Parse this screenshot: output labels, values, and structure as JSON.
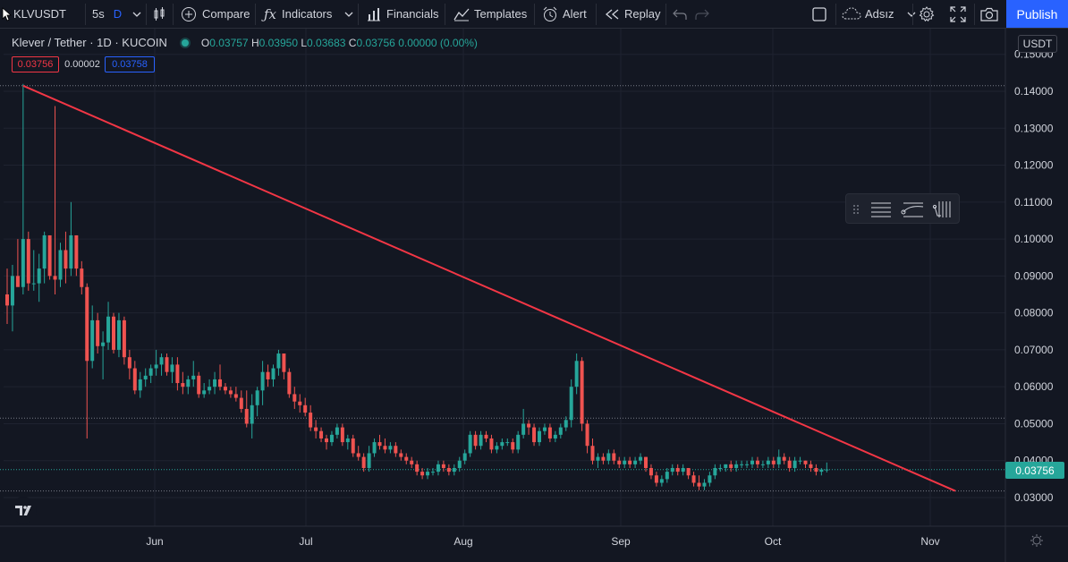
{
  "toolbar": {
    "symbol": "KLVUSDT",
    "interval_a": "5s",
    "interval_b": "D",
    "compare": "Compare",
    "indicators": "Indicators",
    "financials": "Financials",
    "templates": "Templates",
    "alert": "Alert",
    "replay": "Replay",
    "layout_name": "Adsız",
    "publish": "Publish"
  },
  "legend": {
    "title": "Klever / Tether · 1D · KUCOIN",
    "o_key": "O",
    "o_val": "0.03757",
    "h_key": "H",
    "h_val": "0.03950",
    "l_key": "L",
    "l_val": "0.03683",
    "c_key": "C",
    "c_val": "0.03756",
    "change": "0.00000 (0.00%)",
    "bid": "0.03756",
    "spread": "0.00002",
    "ask": "0.03758"
  },
  "colors": {
    "up": "#26a69a",
    "down": "#ef5350",
    "trendline": "#f23645",
    "accent": "#2962ff"
  },
  "price_axis": {
    "currency": "USDT",
    "labels": [
      "0.15000",
      "0.14000",
      "0.13000",
      "0.12000",
      "0.11000",
      "0.10000",
      "0.09000",
      "0.08000",
      "0.07000",
      "0.06000",
      "0.05000",
      "0.04000",
      "0.03000"
    ],
    "last_price": "0.03756"
  },
  "time_axis": {
    "labels": [
      "Jun",
      "Jul",
      "Aug",
      "Sep",
      "Oct",
      "Nov"
    ]
  },
  "chart_data": {
    "type": "candlestick",
    "symbol": "KLVUSDT",
    "interval": "1D",
    "exchange": "KUCOIN",
    "ylim": [
      0.029,
      0.152
    ],
    "candles": [
      {
        "o": 0.085,
        "h": 0.092,
        "l": 0.077,
        "c": 0.082
      },
      {
        "o": 0.082,
        "h": 0.093,
        "l": 0.075,
        "c": 0.09
      },
      {
        "o": 0.09,
        "h": 0.1,
        "l": 0.088,
        "c": 0.087
      },
      {
        "o": 0.087,
        "h": 0.142,
        "l": 0.085,
        "c": 0.1
      },
      {
        "o": 0.1,
        "h": 0.102,
        "l": 0.086,
        "c": 0.088
      },
      {
        "o": 0.088,
        "h": 0.097,
        "l": 0.086,
        "c": 0.088
      },
      {
        "o": 0.088,
        "h": 0.096,
        "l": 0.083,
        "c": 0.092
      },
      {
        "o": 0.092,
        "h": 0.102,
        "l": 0.088,
        "c": 0.101
      },
      {
        "o": 0.101,
        "h": 0.101,
        "l": 0.089,
        "c": 0.09
      },
      {
        "o": 0.09,
        "h": 0.136,
        "l": 0.085,
        "c": 0.089
      },
      {
        "o": 0.089,
        "h": 0.099,
        "l": 0.087,
        "c": 0.097
      },
      {
        "o": 0.097,
        "h": 0.102,
        "l": 0.088,
        "c": 0.092
      },
      {
        "o": 0.092,
        "h": 0.11,
        "l": 0.09,
        "c": 0.101
      },
      {
        "o": 0.101,
        "h": 0.101,
        "l": 0.09,
        "c": 0.092
      },
      {
        "o": 0.092,
        "h": 0.094,
        "l": 0.085,
        "c": 0.087
      },
      {
        "o": 0.087,
        "h": 0.088,
        "l": 0.046,
        "c": 0.067
      },
      {
        "o": 0.067,
        "h": 0.082,
        "l": 0.065,
        "c": 0.078
      },
      {
        "o": 0.078,
        "h": 0.08,
        "l": 0.069,
        "c": 0.071
      },
      {
        "o": 0.071,
        "h": 0.075,
        "l": 0.062,
        "c": 0.072
      },
      {
        "o": 0.072,
        "h": 0.083,
        "l": 0.07,
        "c": 0.079
      },
      {
        "o": 0.079,
        "h": 0.08,
        "l": 0.069,
        "c": 0.07
      },
      {
        "o": 0.07,
        "h": 0.08,
        "l": 0.068,
        "c": 0.078
      },
      {
        "o": 0.078,
        "h": 0.079,
        "l": 0.066,
        "c": 0.068
      },
      {
        "o": 0.068,
        "h": 0.07,
        "l": 0.062,
        "c": 0.065
      },
      {
        "o": 0.065,
        "h": 0.067,
        "l": 0.058,
        "c": 0.059
      },
      {
        "o": 0.059,
        "h": 0.064,
        "l": 0.057,
        "c": 0.062
      },
      {
        "o": 0.062,
        "h": 0.065,
        "l": 0.06,
        "c": 0.063
      },
      {
        "o": 0.063,
        "h": 0.066,
        "l": 0.061,
        "c": 0.065
      },
      {
        "o": 0.065,
        "h": 0.07,
        "l": 0.063,
        "c": 0.066
      },
      {
        "o": 0.066,
        "h": 0.069,
        "l": 0.063,
        "c": 0.068
      },
      {
        "o": 0.068,
        "h": 0.069,
        "l": 0.063,
        "c": 0.064
      },
      {
        "o": 0.064,
        "h": 0.068,
        "l": 0.061,
        "c": 0.066
      },
      {
        "o": 0.066,
        "h": 0.068,
        "l": 0.059,
        "c": 0.061
      },
      {
        "o": 0.061,
        "h": 0.064,
        "l": 0.058,
        "c": 0.06
      },
      {
        "o": 0.06,
        "h": 0.063,
        "l": 0.058,
        "c": 0.062
      },
      {
        "o": 0.062,
        "h": 0.067,
        "l": 0.06,
        "c": 0.063
      },
      {
        "o": 0.063,
        "h": 0.064,
        "l": 0.057,
        "c": 0.058
      },
      {
        "o": 0.058,
        "h": 0.061,
        "l": 0.057,
        "c": 0.059
      },
      {
        "o": 0.059,
        "h": 0.062,
        "l": 0.058,
        "c": 0.06
      },
      {
        "o": 0.06,
        "h": 0.064,
        "l": 0.058,
        "c": 0.062
      },
      {
        "o": 0.062,
        "h": 0.066,
        "l": 0.059,
        "c": 0.06
      },
      {
        "o": 0.06,
        "h": 0.061,
        "l": 0.058,
        "c": 0.059
      },
      {
        "o": 0.059,
        "h": 0.06,
        "l": 0.057,
        "c": 0.058
      },
      {
        "o": 0.058,
        "h": 0.06,
        "l": 0.056,
        "c": 0.057
      },
      {
        "o": 0.057,
        "h": 0.059,
        "l": 0.053,
        "c": 0.054
      },
      {
        "o": 0.054,
        "h": 0.059,
        "l": 0.049,
        "c": 0.05
      },
      {
        "o": 0.05,
        "h": 0.058,
        "l": 0.046,
        "c": 0.055
      },
      {
        "o": 0.055,
        "h": 0.06,
        "l": 0.052,
        "c": 0.059
      },
      {
        "o": 0.059,
        "h": 0.067,
        "l": 0.055,
        "c": 0.064
      },
      {
        "o": 0.064,
        "h": 0.066,
        "l": 0.06,
        "c": 0.062
      },
      {
        "o": 0.062,
        "h": 0.066,
        "l": 0.06,
        "c": 0.065
      },
      {
        "o": 0.065,
        "h": 0.07,
        "l": 0.063,
        "c": 0.069
      },
      {
        "o": 0.069,
        "h": 0.069,
        "l": 0.062,
        "c": 0.064
      },
      {
        "o": 0.064,
        "h": 0.065,
        "l": 0.057,
        "c": 0.058
      },
      {
        "o": 0.058,
        "h": 0.06,
        "l": 0.054,
        "c": 0.056
      },
      {
        "o": 0.056,
        "h": 0.058,
        "l": 0.053,
        "c": 0.055
      },
      {
        "o": 0.055,
        "h": 0.057,
        "l": 0.052,
        "c": 0.053
      },
      {
        "o": 0.053,
        "h": 0.055,
        "l": 0.048,
        "c": 0.049
      },
      {
        "o": 0.049,
        "h": 0.051,
        "l": 0.046,
        "c": 0.048
      },
      {
        "o": 0.048,
        "h": 0.049,
        "l": 0.045,
        "c": 0.046
      },
      {
        "o": 0.046,
        "h": 0.047,
        "l": 0.043,
        "c": 0.045
      },
      {
        "o": 0.045,
        "h": 0.048,
        "l": 0.044,
        "c": 0.047
      },
      {
        "o": 0.047,
        "h": 0.05,
        "l": 0.046,
        "c": 0.049
      },
      {
        "o": 0.049,
        "h": 0.05,
        "l": 0.044,
        "c": 0.045
      },
      {
        "o": 0.045,
        "h": 0.047,
        "l": 0.043,
        "c": 0.046
      },
      {
        "o": 0.046,
        "h": 0.047,
        "l": 0.041,
        "c": 0.042
      },
      {
        "o": 0.042,
        "h": 0.044,
        "l": 0.04,
        "c": 0.041
      },
      {
        "o": 0.041,
        "h": 0.042,
        "l": 0.037,
        "c": 0.038
      },
      {
        "o": 0.038,
        "h": 0.044,
        "l": 0.037,
        "c": 0.042
      },
      {
        "o": 0.042,
        "h": 0.046,
        "l": 0.041,
        "c": 0.045
      },
      {
        "o": 0.045,
        "h": 0.047,
        "l": 0.043,
        "c": 0.044
      },
      {
        "o": 0.044,
        "h": 0.046,
        "l": 0.042,
        "c": 0.043
      },
      {
        "o": 0.043,
        "h": 0.045,
        "l": 0.042,
        "c": 0.044
      },
      {
        "o": 0.044,
        "h": 0.045,
        "l": 0.041,
        "c": 0.042
      },
      {
        "o": 0.042,
        "h": 0.043,
        "l": 0.04,
        "c": 0.041
      },
      {
        "o": 0.041,
        "h": 0.042,
        "l": 0.039,
        "c": 0.04
      },
      {
        "o": 0.04,
        "h": 0.041,
        "l": 0.038,
        "c": 0.039
      },
      {
        "o": 0.039,
        "h": 0.04,
        "l": 0.036,
        "c": 0.037
      },
      {
        "o": 0.037,
        "h": 0.038,
        "l": 0.035,
        "c": 0.036
      },
      {
        "o": 0.036,
        "h": 0.038,
        "l": 0.035,
        "c": 0.037
      },
      {
        "o": 0.037,
        "h": 0.038,
        "l": 0.036,
        "c": 0.037
      },
      {
        "o": 0.037,
        "h": 0.04,
        "l": 0.036,
        "c": 0.039
      },
      {
        "o": 0.039,
        "h": 0.04,
        "l": 0.037,
        "c": 0.038
      },
      {
        "o": 0.038,
        "h": 0.039,
        "l": 0.036,
        "c": 0.037
      },
      {
        "o": 0.037,
        "h": 0.039,
        "l": 0.036,
        "c": 0.038
      },
      {
        "o": 0.038,
        "h": 0.041,
        "l": 0.037,
        "c": 0.04
      },
      {
        "o": 0.04,
        "h": 0.043,
        "l": 0.039,
        "c": 0.042
      },
      {
        "o": 0.042,
        "h": 0.048,
        "l": 0.041,
        "c": 0.047
      },
      {
        "o": 0.047,
        "h": 0.048,
        "l": 0.043,
        "c": 0.044
      },
      {
        "o": 0.044,
        "h": 0.048,
        "l": 0.043,
        "c": 0.047
      },
      {
        "o": 0.047,
        "h": 0.048,
        "l": 0.045,
        "c": 0.046
      },
      {
        "o": 0.046,
        "h": 0.047,
        "l": 0.042,
        "c": 0.043
      },
      {
        "o": 0.043,
        "h": 0.045,
        "l": 0.042,
        "c": 0.044
      },
      {
        "o": 0.044,
        "h": 0.046,
        "l": 0.043,
        "c": 0.045
      },
      {
        "o": 0.045,
        "h": 0.046,
        "l": 0.044,
        "c": 0.045
      },
      {
        "o": 0.045,
        "h": 0.046,
        "l": 0.042,
        "c": 0.043
      },
      {
        "o": 0.043,
        "h": 0.048,
        "l": 0.042,
        "c": 0.047
      },
      {
        "o": 0.047,
        "h": 0.054,
        "l": 0.046,
        "c": 0.05
      },
      {
        "o": 0.05,
        "h": 0.051,
        "l": 0.047,
        "c": 0.049
      },
      {
        "o": 0.049,
        "h": 0.05,
        "l": 0.044,
        "c": 0.045
      },
      {
        "o": 0.045,
        "h": 0.049,
        "l": 0.044,
        "c": 0.048
      },
      {
        "o": 0.048,
        "h": 0.05,
        "l": 0.047,
        "c": 0.049
      },
      {
        "o": 0.049,
        "h": 0.05,
        "l": 0.045,
        "c": 0.046
      },
      {
        "o": 0.046,
        "h": 0.048,
        "l": 0.045,
        "c": 0.047
      },
      {
        "o": 0.047,
        "h": 0.05,
        "l": 0.046,
        "c": 0.049
      },
      {
        "o": 0.049,
        "h": 0.052,
        "l": 0.048,
        "c": 0.051
      },
      {
        "o": 0.051,
        "h": 0.062,
        "l": 0.049,
        "c": 0.06
      },
      {
        "o": 0.06,
        "h": 0.069,
        "l": 0.058,
        "c": 0.067
      },
      {
        "o": 0.067,
        "h": 0.068,
        "l": 0.048,
        "c": 0.05
      },
      {
        "o": 0.05,
        "h": 0.051,
        "l": 0.042,
        "c": 0.044
      },
      {
        "o": 0.044,
        "h": 0.046,
        "l": 0.039,
        "c": 0.04
      },
      {
        "o": 0.04,
        "h": 0.042,
        "l": 0.038,
        "c": 0.041
      },
      {
        "o": 0.041,
        "h": 0.042,
        "l": 0.039,
        "c": 0.04
      },
      {
        "o": 0.04,
        "h": 0.043,
        "l": 0.039,
        "c": 0.042
      },
      {
        "o": 0.042,
        "h": 0.043,
        "l": 0.039,
        "c": 0.04
      },
      {
        "o": 0.04,
        "h": 0.041,
        "l": 0.038,
        "c": 0.039
      },
      {
        "o": 0.039,
        "h": 0.041,
        "l": 0.038,
        "c": 0.04
      },
      {
        "o": 0.04,
        "h": 0.041,
        "l": 0.038,
        "c": 0.039
      },
      {
        "o": 0.039,
        "h": 0.041,
        "l": 0.038,
        "c": 0.04
      },
      {
        "o": 0.04,
        "h": 0.042,
        "l": 0.039,
        "c": 0.041
      },
      {
        "o": 0.041,
        "h": 0.041,
        "l": 0.037,
        "c": 0.038
      },
      {
        "o": 0.038,
        "h": 0.039,
        "l": 0.035,
        "c": 0.036
      },
      {
        "o": 0.036,
        "h": 0.037,
        "l": 0.033,
        "c": 0.034
      },
      {
        "o": 0.034,
        "h": 0.036,
        "l": 0.033,
        "c": 0.035
      },
      {
        "o": 0.035,
        "h": 0.038,
        "l": 0.034,
        "c": 0.037
      },
      {
        "o": 0.037,
        "h": 0.039,
        "l": 0.036,
        "c": 0.038
      },
      {
        "o": 0.038,
        "h": 0.039,
        "l": 0.036,
        "c": 0.037
      },
      {
        "o": 0.037,
        "h": 0.039,
        "l": 0.036,
        "c": 0.038
      },
      {
        "o": 0.038,
        "h": 0.038,
        "l": 0.035,
        "c": 0.036
      },
      {
        "o": 0.036,
        "h": 0.037,
        "l": 0.033,
        "c": 0.034
      },
      {
        "o": 0.034,
        "h": 0.036,
        "l": 0.032,
        "c": 0.033
      },
      {
        "o": 0.033,
        "h": 0.035,
        "l": 0.032,
        "c": 0.034
      },
      {
        "o": 0.034,
        "h": 0.037,
        "l": 0.033,
        "c": 0.036
      },
      {
        "o": 0.036,
        "h": 0.039,
        "l": 0.035,
        "c": 0.038
      },
      {
        "o": 0.038,
        "h": 0.039,
        "l": 0.037,
        "c": 0.038
      },
      {
        "o": 0.038,
        "h": 0.039,
        "l": 0.037,
        "c": 0.039
      },
      {
        "o": 0.039,
        "h": 0.04,
        "l": 0.037,
        "c": 0.038
      },
      {
        "o": 0.038,
        "h": 0.04,
        "l": 0.037,
        "c": 0.039
      },
      {
        "o": 0.039,
        "h": 0.04,
        "l": 0.038,
        "c": 0.039
      },
      {
        "o": 0.039,
        "h": 0.04,
        "l": 0.038,
        "c": 0.039
      },
      {
        "o": 0.039,
        "h": 0.041,
        "l": 0.038,
        "c": 0.04
      },
      {
        "o": 0.04,
        "h": 0.041,
        "l": 0.038,
        "c": 0.039
      },
      {
        "o": 0.039,
        "h": 0.04,
        "l": 0.038,
        "c": 0.039
      },
      {
        "o": 0.039,
        "h": 0.041,
        "l": 0.038,
        "c": 0.04
      },
      {
        "o": 0.04,
        "h": 0.041,
        "l": 0.038,
        "c": 0.039
      },
      {
        "o": 0.039,
        "h": 0.043,
        "l": 0.038,
        "c": 0.041
      },
      {
        "o": 0.041,
        "h": 0.042,
        "l": 0.039,
        "c": 0.04
      },
      {
        "o": 0.04,
        "h": 0.041,
        "l": 0.037,
        "c": 0.038
      },
      {
        "o": 0.038,
        "h": 0.041,
        "l": 0.037,
        "c": 0.04
      },
      {
        "o": 0.04,
        "h": 0.041,
        "l": 0.039,
        "c": 0.04
      },
      {
        "o": 0.04,
        "h": 0.04,
        "l": 0.038,
        "c": 0.039
      },
      {
        "o": 0.039,
        "h": 0.04,
        "l": 0.037,
        "c": 0.038
      },
      {
        "o": 0.038,
        "h": 0.039,
        "l": 0.036,
        "c": 0.037
      },
      {
        "o": 0.037,
        "h": 0.038,
        "l": 0.036,
        "c": 0.0376
      },
      {
        "o": 0.0376,
        "h": 0.0395,
        "l": 0.0368,
        "c": 0.0376
      }
    ],
    "trendline": {
      "from": {
        "index": 3,
        "price": 0.1415
      },
      "to": {
        "index": 152,
        "price": 0.0318
      }
    },
    "horizontal_levels": [
      0.1415,
      0.0515,
      0.0318
    ],
    "last_price": 0.03756
  }
}
